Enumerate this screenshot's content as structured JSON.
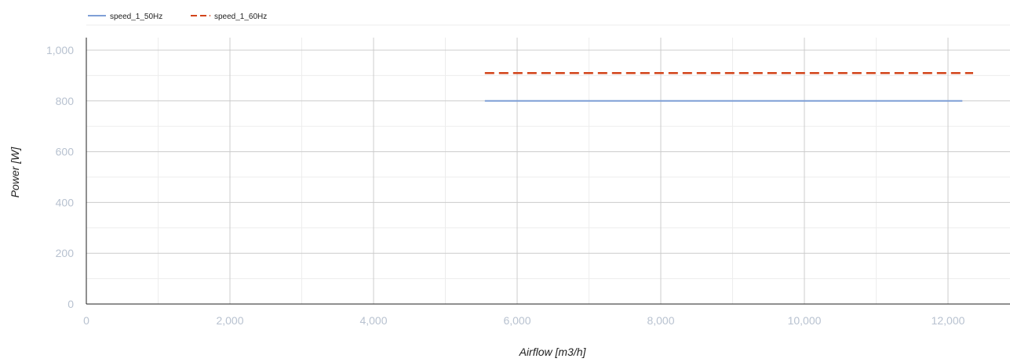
{
  "chart_data": {
    "type": "line",
    "title": "",
    "xlabel": "Airflow [m3/h]",
    "ylabel": "Power [W]",
    "xlim": [
      0,
      12800
    ],
    "ylim": [
      0,
      1000
    ],
    "x_ticks": [
      0,
      2000,
      4000,
      6000,
      8000,
      10000,
      12000
    ],
    "x_tick_labels": [
      "0",
      "2,000",
      "4,000",
      "6,000",
      "8,000",
      "10,000",
      "12,000"
    ],
    "y_ticks": [
      0,
      200,
      400,
      600,
      800,
      1000
    ],
    "y_tick_labels": [
      "0",
      "200",
      "400",
      "600",
      "800",
      "1,000"
    ],
    "grid": true,
    "legend_position": "top-left",
    "series": [
      {
        "name": "speed_1_50Hz",
        "color": "#7f9fd6",
        "dash": "solid",
        "x": [
          5550,
          12200
        ],
        "y": [
          800,
          800
        ]
      },
      {
        "name": "speed_1_60Hz",
        "color": "#d2441a",
        "dash": "dashed",
        "x": [
          5550,
          12350
        ],
        "y": [
          910,
          910
        ]
      }
    ]
  }
}
